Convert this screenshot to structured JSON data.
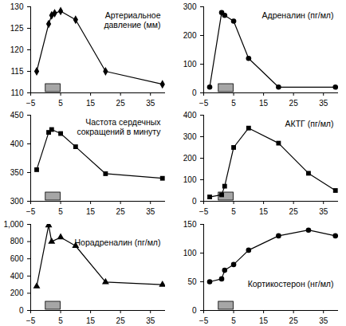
{
  "chart_data": [
    {
      "type": "line",
      "title": "Артериальное\nдавление (мм)",
      "color": "#000000",
      "marker": "diamond",
      "x": [
        -3,
        1,
        2,
        3,
        5,
        10,
        20,
        39
      ],
      "values": [
        115,
        126,
        128,
        128.5,
        129,
        127,
        115,
        112
      ],
      "stimulus": [
        0,
        5
      ],
      "xlim": [
        -5,
        40
      ],
      "xticks": [
        -5,
        5,
        15,
        25,
        35
      ],
      "ylim": [
        110,
        130
      ],
      "yticks": [
        110,
        115,
        120,
        125,
        130
      ]
    },
    {
      "type": "line",
      "title": "Адреналин (пг/мл)",
      "color": "#000000",
      "marker": "circle",
      "x": [
        -3,
        1,
        2,
        5,
        10,
        20,
        39
      ],
      "values": [
        20,
        280,
        270,
        250,
        120,
        20,
        20
      ],
      "stimulus": [
        0,
        5
      ],
      "xlim": [
        -5,
        40
      ],
      "xticks": [
        -5,
        5,
        15,
        25,
        35
      ],
      "ylim": [
        0,
        300
      ],
      "yticks": [
        0,
        100,
        200,
        300
      ]
    },
    {
      "type": "line",
      "title": "Частота сердечных\nсокращений в минуту",
      "color": "#000000",
      "marker": "square",
      "x": [
        -3,
        1,
        2,
        5,
        10,
        20,
        39
      ],
      "values": [
        355,
        420,
        425,
        418,
        395,
        348,
        340
      ],
      "stimulus": [
        0,
        5
      ],
      "xlim": [
        -5,
        40
      ],
      "xticks": [
        -5,
        5,
        15,
        25,
        35
      ],
      "ylim": [
        300,
        450
      ],
      "yticks": [
        300,
        350,
        400,
        450
      ]
    },
    {
      "type": "line",
      "title": "АКТГ (пг/мл)",
      "color": "#000000",
      "marker": "square",
      "x": [
        -3,
        1,
        2,
        5,
        10,
        20,
        30,
        39
      ],
      "values": [
        20,
        30,
        70,
        250,
        340,
        270,
        130,
        50
      ],
      "stimulus": [
        0,
        5
      ],
      "xlim": [
        -5,
        40
      ],
      "xticks": [
        -5,
        5,
        15,
        25,
        35
      ],
      "ylim": [
        0,
        400
      ],
      "yticks": [
        0,
        100,
        200,
        300,
        400
      ]
    },
    {
      "type": "line",
      "title": "Норадреналин (пг/мл)",
      "color": "#000000",
      "marker": "triangle",
      "x": [
        -3,
        1,
        2,
        5,
        10,
        20,
        39
      ],
      "values": [
        280,
        990,
        800,
        850,
        750,
        330,
        300
      ],
      "stimulus": [
        0,
        5
      ],
      "xlim": [
        -5,
        40
      ],
      "xticks": [
        -5,
        5,
        15,
        25,
        35
      ],
      "ylim": [
        0,
        1000
      ],
      "yticks": [
        0,
        200,
        400,
        600,
        800,
        1000
      ]
    },
    {
      "type": "line",
      "title": "Кортикостерон (нг/мл)",
      "color": "#000000",
      "marker": "circle",
      "x": [
        -3,
        1,
        2,
        5,
        10,
        20,
        30,
        39
      ],
      "values": [
        50,
        55,
        70,
        80,
        105,
        130,
        140,
        130
      ],
      "stimulus": [
        0,
        5
      ],
      "xlim": [
        -5,
        40
      ],
      "xticks": [
        -5,
        5,
        15,
        25,
        35
      ],
      "ylim": [
        0,
        150
      ],
      "yticks": [
        0,
        50,
        100,
        150
      ]
    }
  ]
}
